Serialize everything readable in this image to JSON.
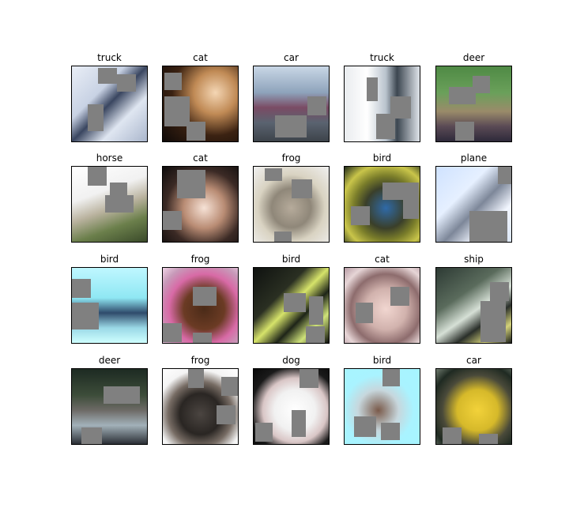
{
  "grid": {
    "labels": [
      "truck",
      "cat",
      "car",
      "truck",
      "deer",
      "horse",
      "cat",
      "frog",
      "bird",
      "plane",
      "bird",
      "frog",
      "bird",
      "cat",
      "ship",
      "deer",
      "frog",
      "dog",
      "bird",
      "car"
    ]
  }
}
